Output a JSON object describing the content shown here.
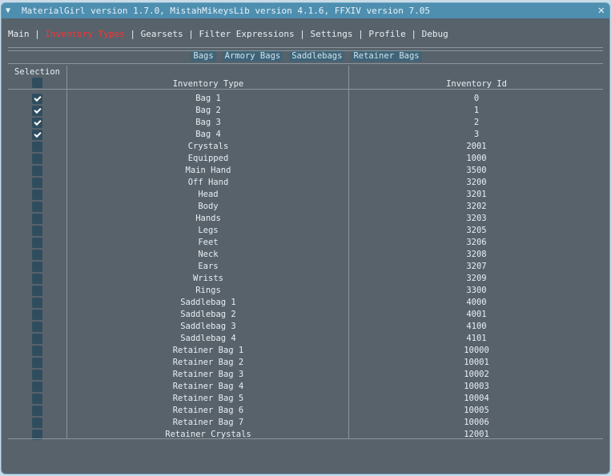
{
  "window": {
    "title": "MaterialGirl version 1.7.0, MistahMikeysLib version 4.1.6, FFXIV version 7.05"
  },
  "menu": [
    "Main",
    "Inventory Types",
    "Gearsets",
    "Filter Expressions",
    "Settings",
    "Profile",
    "Debug"
  ],
  "active_menu": "Inventory Types",
  "subtabs": [
    "Bags",
    "Armory Bags",
    "Saddlebags",
    "Retainer Bags"
  ],
  "table": {
    "headers": {
      "selection": "Selection",
      "type": "Inventory Type",
      "id": "Inventory Id"
    },
    "rows": [
      {
        "type": "Bag 1",
        "id": "0",
        "checked": true
      },
      {
        "type": "Bag 2",
        "id": "1",
        "checked": true
      },
      {
        "type": "Bag 3",
        "id": "2",
        "checked": true
      },
      {
        "type": "Bag 4",
        "id": "3",
        "checked": true
      },
      {
        "type": "Crystals",
        "id": "2001",
        "checked": false
      },
      {
        "type": "Equipped",
        "id": "1000",
        "checked": false
      },
      {
        "type": "Main Hand",
        "id": "3500",
        "checked": false
      },
      {
        "type": "Off Hand",
        "id": "3200",
        "checked": false
      },
      {
        "type": "Head",
        "id": "3201",
        "checked": false
      },
      {
        "type": "Body",
        "id": "3202",
        "checked": false
      },
      {
        "type": "Hands",
        "id": "3203",
        "checked": false
      },
      {
        "type": "Legs",
        "id": "3205",
        "checked": false
      },
      {
        "type": "Feet",
        "id": "3206",
        "checked": false
      },
      {
        "type": "Neck",
        "id": "3208",
        "checked": false
      },
      {
        "type": "Ears",
        "id": "3207",
        "checked": false
      },
      {
        "type": "Wrists",
        "id": "3209",
        "checked": false
      },
      {
        "type": "Rings",
        "id": "3300",
        "checked": false
      },
      {
        "type": "Saddlebag 1",
        "id": "4000",
        "checked": false
      },
      {
        "type": "Saddlebag 2",
        "id": "4001",
        "checked": false
      },
      {
        "type": "Saddlebag 3",
        "id": "4100",
        "checked": false
      },
      {
        "type": "Saddlebag 4",
        "id": "4101",
        "checked": false
      },
      {
        "type": "Retainer Bag 1",
        "id": "10000",
        "checked": false
      },
      {
        "type": "Retainer Bag 2",
        "id": "10001",
        "checked": false
      },
      {
        "type": "Retainer Bag 3",
        "id": "10002",
        "checked": false
      },
      {
        "type": "Retainer Bag 4",
        "id": "10003",
        "checked": false
      },
      {
        "type": "Retainer Bag 5",
        "id": "10004",
        "checked": false
      },
      {
        "type": "Retainer Bag 6",
        "id": "10005",
        "checked": false
      },
      {
        "type": "Retainer Bag 7",
        "id": "10006",
        "checked": false
      },
      {
        "type": "Retainer Crystals",
        "id": "12001",
        "checked": false
      }
    ]
  }
}
